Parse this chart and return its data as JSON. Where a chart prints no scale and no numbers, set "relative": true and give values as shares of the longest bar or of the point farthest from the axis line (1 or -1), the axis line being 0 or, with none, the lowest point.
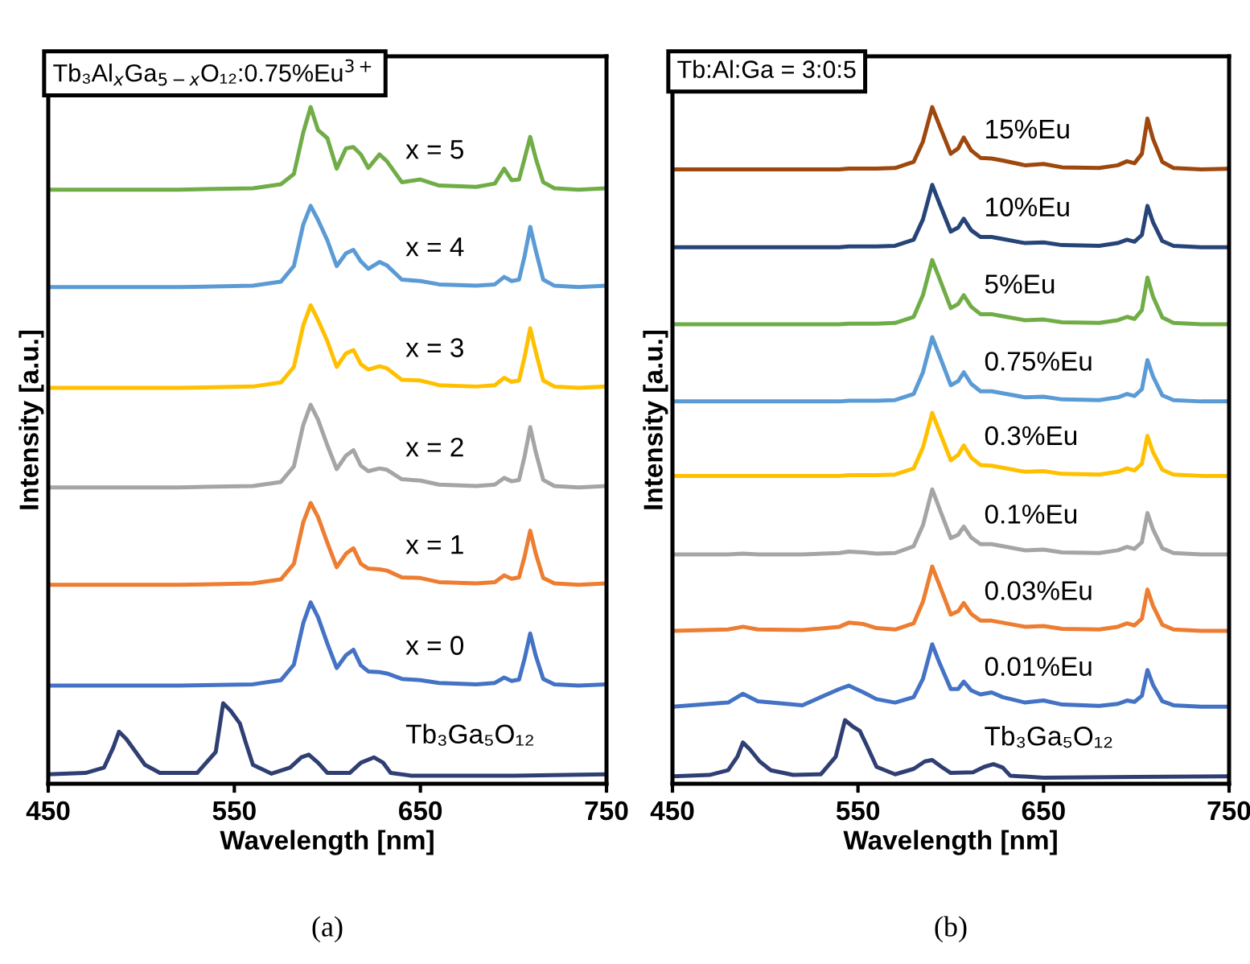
{
  "chart_data": [
    {
      "type": "line",
      "relative": true,
      "title": "Tb₃Al$_{x}$Ga$_{5−x}$O₁₂:0.75%Eu$^{3+}$",
      "xlabel": "Wavelength [nm]",
      "ylabel": "Intensity [a.u.]",
      "xlim": [
        450,
        750
      ],
      "xticks": [
        450,
        550,
        650,
        750
      ],
      "tick_labels": "x",
      "annotations": [
        "(a)"
      ],
      "x": [
        450,
        520,
        560,
        575,
        582,
        587,
        591,
        595,
        600,
        605,
        610,
        614,
        618,
        622,
        628,
        632,
        640,
        650,
        660,
        680,
        690,
        695,
        699,
        703,
        706,
        709,
        712,
        716,
        722,
        735,
        750
      ],
      "series": [
        {
          "name": "x = 5",
          "color": "#70ad47",
          "values": [
            0.878,
            0.878,
            0.88,
            0.886,
            0.901,
            0.962,
            1.0,
            0.966,
            0.954,
            0.909,
            0.939,
            0.941,
            0.93,
            0.91,
            0.93,
            0.92,
            0.889,
            0.893,
            0.884,
            0.882,
            0.887,
            0.909,
            0.892,
            0.893,
            0.924,
            0.956,
            0.924,
            0.889,
            0.88,
            0.878,
            0.88
          ]
        },
        {
          "name": "x = 4",
          "color": "#5b9bd5",
          "values": [
            0.734,
            0.734,
            0.736,
            0.742,
            0.765,
            0.826,
            0.854,
            0.833,
            0.803,
            0.765,
            0.784,
            0.789,
            0.772,
            0.761,
            0.771,
            0.766,
            0.745,
            0.743,
            0.738,
            0.736,
            0.738,
            0.749,
            0.743,
            0.745,
            0.78,
            0.823,
            0.788,
            0.745,
            0.736,
            0.734,
            0.736
          ]
        },
        {
          "name": "x = 3",
          "color": "#ffc000",
          "values": [
            0.585,
            0.585,
            0.587,
            0.593,
            0.616,
            0.677,
            0.707,
            0.685,
            0.654,
            0.616,
            0.636,
            0.641,
            0.62,
            0.612,
            0.617,
            0.614,
            0.597,
            0.596,
            0.589,
            0.587,
            0.589,
            0.6,
            0.594,
            0.596,
            0.631,
            0.673,
            0.638,
            0.596,
            0.587,
            0.585,
            0.587
          ]
        },
        {
          "name": "x = 2",
          "color": "#a5a5a5",
          "values": [
            0.438,
            0.438,
            0.44,
            0.446,
            0.469,
            0.53,
            0.56,
            0.538,
            0.5,
            0.465,
            0.485,
            0.493,
            0.47,
            0.462,
            0.466,
            0.464,
            0.45,
            0.448,
            0.442,
            0.44,
            0.442,
            0.452,
            0.447,
            0.449,
            0.484,
            0.527,
            0.49,
            0.449,
            0.44,
            0.438,
            0.44
          ]
        },
        {
          "name": "x = 1",
          "color": "#ed7d31",
          "values": [
            0.294,
            0.294,
            0.296,
            0.302,
            0.325,
            0.386,
            0.415,
            0.394,
            0.356,
            0.32,
            0.34,
            0.348,
            0.325,
            0.318,
            0.317,
            0.315,
            0.305,
            0.304,
            0.298,
            0.296,
            0.298,
            0.308,
            0.303,
            0.305,
            0.336,
            0.374,
            0.34,
            0.304,
            0.296,
            0.294,
            0.296
          ]
        },
        {
          "name": "x = 0",
          "color": "#4472c4",
          "values": [
            0.145,
            0.145,
            0.147,
            0.153,
            0.176,
            0.237,
            0.268,
            0.246,
            0.207,
            0.171,
            0.19,
            0.198,
            0.175,
            0.166,
            0.165,
            0.163,
            0.155,
            0.153,
            0.149,
            0.147,
            0.149,
            0.157,
            0.152,
            0.154,
            0.185,
            0.222,
            0.189,
            0.155,
            0.147,
            0.145,
            0.147
          ]
        },
        {
          "name": "Tb₃Ga₅O₁₂",
          "color": "#2f3f73",
          "x": [
            450,
            470,
            480,
            485,
            488,
            492,
            497,
            502,
            510,
            530,
            540,
            544,
            548,
            553,
            556,
            560,
            570,
            580,
            586,
            590,
            595,
            600,
            612,
            618,
            625,
            630,
            634,
            645,
            700,
            750
          ],
          "values": [
            0.014,
            0.016,
            0.024,
            0.054,
            0.077,
            0.066,
            0.047,
            0.028,
            0.016,
            0.016,
            0.047,
            0.119,
            0.108,
            0.089,
            0.062,
            0.028,
            0.015,
            0.024,
            0.039,
            0.043,
            0.031,
            0.016,
            0.016,
            0.031,
            0.039,
            0.031,
            0.016,
            0.012,
            0.012,
            0.014
          ]
        }
      ]
    },
    {
      "type": "line",
      "relative": true,
      "title": "Tb:Al:Ga = 3:0:5",
      "xlabel": "Wavelength [nm]",
      "ylabel": "Intensity [a.u.]",
      "xlim": [
        450,
        750
      ],
      "xticks": [
        450,
        550,
        650,
        750
      ],
      "tick_labels": "x",
      "annotations": [
        "(b)"
      ],
      "x": [
        450,
        480,
        488,
        496,
        520,
        540,
        545,
        553,
        560,
        570,
        580,
        585,
        590,
        594,
        600,
        604,
        607,
        611,
        616,
        622,
        628,
        640,
        650,
        660,
        680,
        690,
        695,
        699,
        703,
        706,
        709,
        714,
        720,
        735,
        750
      ],
      "series": [
        {
          "name": "15%Eu",
          "color": "#9e480e",
          "values": [
            0.908,
            0.908,
            0.908,
            0.908,
            0.908,
            0.908,
            0.909,
            0.909,
            0.909,
            0.91,
            0.919,
            0.949,
            1.0,
            0.972,
            0.931,
            0.939,
            0.955,
            0.936,
            0.925,
            0.924,
            0.921,
            0.914,
            0.916,
            0.911,
            0.91,
            0.914,
            0.92,
            0.917,
            0.931,
            0.983,
            0.953,
            0.919,
            0.91,
            0.908,
            0.909
          ]
        },
        {
          "name": "10%Eu",
          "color": "#264478",
          "values": [
            0.793,
            0.793,
            0.793,
            0.793,
            0.793,
            0.793,
            0.794,
            0.794,
            0.794,
            0.795,
            0.804,
            0.834,
            0.885,
            0.857,
            0.816,
            0.822,
            0.835,
            0.818,
            0.808,
            0.808,
            0.805,
            0.799,
            0.8,
            0.796,
            0.795,
            0.799,
            0.804,
            0.801,
            0.811,
            0.854,
            0.83,
            0.802,
            0.795,
            0.793,
            0.793
          ]
        },
        {
          "name": "5%Eu",
          "color": "#70ad47",
          "values": [
            0.679,
            0.679,
            0.679,
            0.679,
            0.679,
            0.679,
            0.68,
            0.68,
            0.68,
            0.681,
            0.69,
            0.722,
            0.774,
            0.746,
            0.703,
            0.709,
            0.722,
            0.705,
            0.694,
            0.694,
            0.691,
            0.685,
            0.686,
            0.682,
            0.681,
            0.685,
            0.69,
            0.687,
            0.7,
            0.748,
            0.72,
            0.689,
            0.681,
            0.679,
            0.679
          ]
        },
        {
          "name": "0.75%Eu",
          "color": "#5b9bd5",
          "values": [
            0.565,
            0.565,
            0.565,
            0.565,
            0.565,
            0.565,
            0.566,
            0.566,
            0.566,
            0.567,
            0.576,
            0.608,
            0.66,
            0.632,
            0.589,
            0.595,
            0.608,
            0.591,
            0.58,
            0.58,
            0.577,
            0.571,
            0.572,
            0.568,
            0.567,
            0.571,
            0.576,
            0.573,
            0.583,
            0.626,
            0.602,
            0.574,
            0.567,
            0.565,
            0.565
          ]
        },
        {
          "name": "0.3%Eu",
          "color": "#ffc000",
          "values": [
            0.455,
            0.455,
            0.455,
            0.455,
            0.455,
            0.455,
            0.456,
            0.456,
            0.456,
            0.457,
            0.466,
            0.497,
            0.548,
            0.52,
            0.478,
            0.486,
            0.5,
            0.482,
            0.471,
            0.47,
            0.467,
            0.461,
            0.462,
            0.458,
            0.457,
            0.461,
            0.466,
            0.463,
            0.473,
            0.514,
            0.49,
            0.464,
            0.457,
            0.455,
            0.455
          ]
        },
        {
          "name": "0.1%Eu",
          "color": "#a5a5a5",
          "values": [
            0.339,
            0.339,
            0.34,
            0.339,
            0.339,
            0.341,
            0.343,
            0.342,
            0.34,
            0.341,
            0.351,
            0.382,
            0.435,
            0.406,
            0.363,
            0.368,
            0.38,
            0.364,
            0.354,
            0.354,
            0.351,
            0.345,
            0.346,
            0.342,
            0.341,
            0.345,
            0.35,
            0.347,
            0.357,
            0.4,
            0.376,
            0.348,
            0.341,
            0.339,
            0.339
          ]
        },
        {
          "name": "0.03%Eu",
          "color": "#ed7d31",
          "values": [
            0.226,
            0.228,
            0.232,
            0.228,
            0.227,
            0.232,
            0.238,
            0.236,
            0.23,
            0.228,
            0.237,
            0.269,
            0.321,
            0.293,
            0.25,
            0.255,
            0.267,
            0.251,
            0.241,
            0.241,
            0.238,
            0.232,
            0.233,
            0.229,
            0.228,
            0.232,
            0.237,
            0.234,
            0.244,
            0.287,
            0.263,
            0.235,
            0.228,
            0.226,
            0.226
          ]
        },
        {
          "name": "0.01%Eu",
          "color": "#4472c4",
          "values": [
            0.114,
            0.12,
            0.133,
            0.122,
            0.116,
            0.14,
            0.145,
            0.135,
            0.125,
            0.12,
            0.128,
            0.155,
            0.206,
            0.178,
            0.14,
            0.14,
            0.151,
            0.138,
            0.132,
            0.135,
            0.128,
            0.12,
            0.123,
            0.117,
            0.115,
            0.118,
            0.123,
            0.121,
            0.13,
            0.168,
            0.146,
            0.122,
            0.116,
            0.114,
            0.114
          ]
        },
        {
          "name": "Tb₃Ga₅O₁₂",
          "color": "#2f3f73",
          "x": [
            450,
            470,
            480,
            485,
            488,
            492,
            497,
            503,
            515,
            530,
            538,
            543,
            547,
            551,
            555,
            560,
            570,
            580,
            586,
            590,
            595,
            600,
            612,
            618,
            623,
            628,
            632,
            650,
            700,
            750
          ],
          "values": [
            0.011,
            0.013,
            0.02,
            0.04,
            0.061,
            0.05,
            0.033,
            0.02,
            0.013,
            0.014,
            0.04,
            0.094,
            0.085,
            0.078,
            0.055,
            0.025,
            0.014,
            0.022,
            0.033,
            0.035,
            0.025,
            0.016,
            0.017,
            0.025,
            0.029,
            0.024,
            0.012,
            0.009,
            0.01,
            0.011
          ]
        }
      ]
    }
  ]
}
